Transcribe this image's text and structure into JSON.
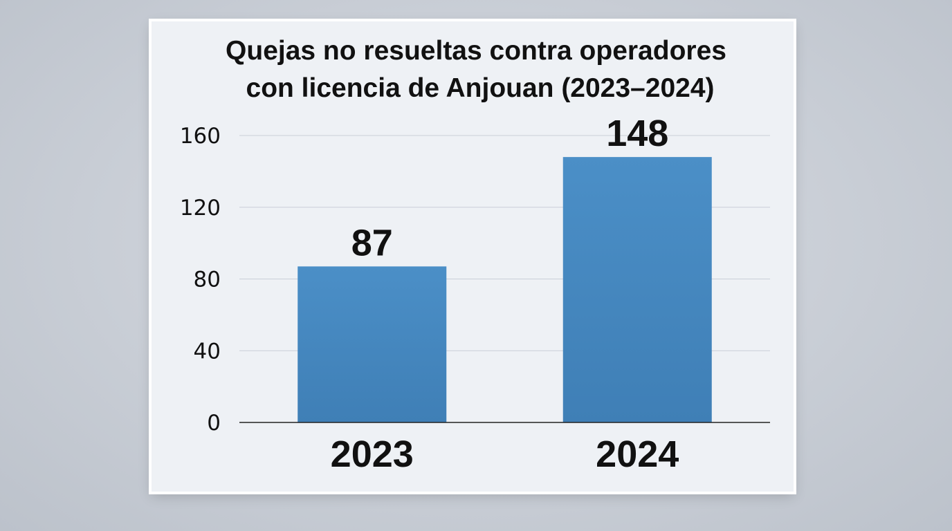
{
  "chart_data": {
    "type": "bar",
    "title_lines": [
      "Quejas no resueltas contra operadores",
      "con licencia de Anjouan (2023–2024)"
    ],
    "categories": [
      "2023",
      "2024"
    ],
    "values": [
      87,
      148
    ],
    "data_labels": [
      "87",
      "148"
    ],
    "ylim": [
      0,
      160
    ],
    "yticks": [
      0,
      40,
      80,
      120,
      160
    ],
    "ytick_labels": [
      "0",
      "40",
      "80",
      "120",
      "160"
    ],
    "xlabel": "",
    "ylabel": "",
    "grid": true,
    "legend": "none",
    "bar_color": "#4a8cc4"
  }
}
